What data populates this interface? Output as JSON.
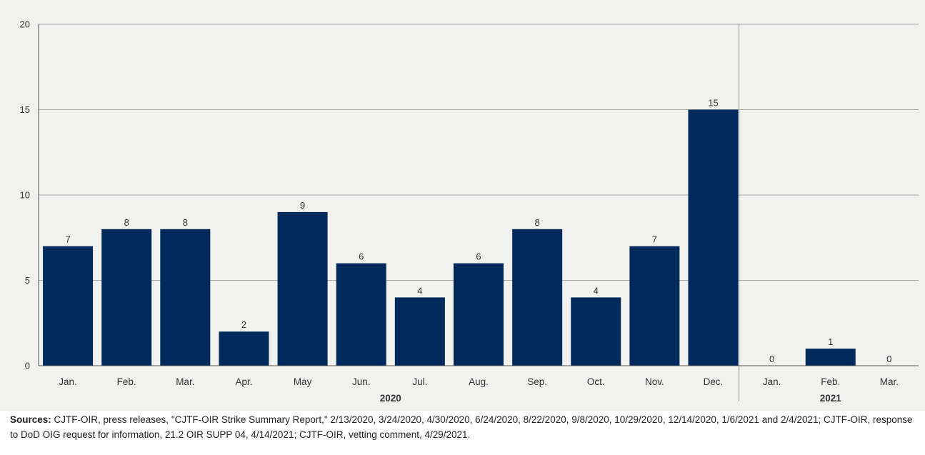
{
  "chart_data": {
    "type": "bar",
    "categories": [
      "Jan.",
      "Feb.",
      "Mar.",
      "Apr.",
      "May",
      "Jun.",
      "Jul.",
      "Aug.",
      "Sep.",
      "Oct.",
      "Nov.",
      "Dec.",
      "Jan.",
      "Feb.",
      "Mar."
    ],
    "groups": [
      {
        "label": "2020",
        "count": 12
      },
      {
        "label": "2021",
        "count": 3
      }
    ],
    "values": [
      7,
      8,
      8,
      2,
      9,
      6,
      4,
      6,
      8,
      4,
      7,
      15,
      0,
      1,
      0
    ],
    "data_labels": [
      "7",
      "8",
      "8",
      "2",
      "9",
      "6",
      "4",
      "6",
      "8",
      "4",
      "7",
      "15",
      "0",
      "1",
      "0"
    ],
    "yticks": [
      "0",
      "5",
      "10",
      "15",
      "20"
    ],
    "ylim": [
      0,
      20
    ],
    "grid": true,
    "bar_color": "#002a5c",
    "title": "",
    "xlabel": "",
    "ylabel": ""
  },
  "sources": {
    "label": "Sources:",
    "text": " CJTF-OIR, press releases, \"CJTF-OIR Strike Summary Report,\" 2/13/2020, 3/24/2020, 4/30/2020, 6/24/2020, 8/22/2020, 9/8/2020, 10/29/2020, 12/14/2020, 1/6/2021 and 2/4/2021; CJTF-OIR, response to DoD OIG request for information, 21.2 OIR SUPP 04, 4/14/2021; CJTF-OIR, vetting comment, 4/29/2021."
  }
}
